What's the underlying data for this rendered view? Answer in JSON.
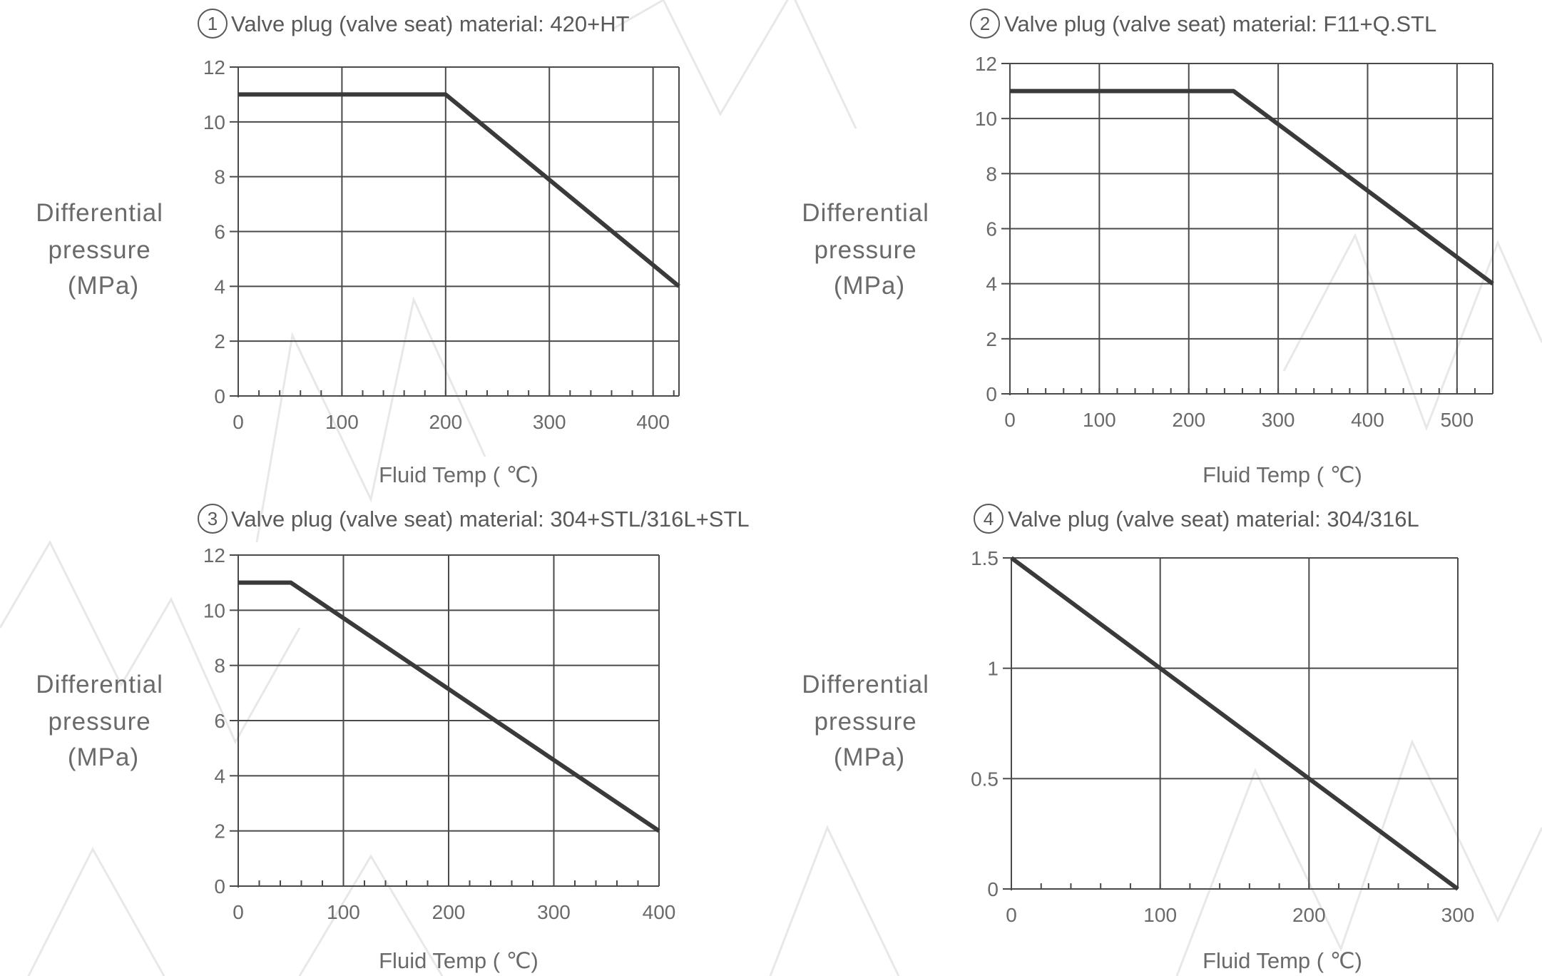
{
  "chart_data": [
    {
      "type": "line",
      "number": "1",
      "title": "Valve plug (valve seat) material: 420+HT",
      "ylabel": [
        "Differential",
        "pressure",
        "(MPa)"
      ],
      "xlabel": "Fluid Temp ( ℃)",
      "xlim": [
        0,
        425
      ],
      "ylim": [
        0,
        12
      ],
      "xticks": [
        0,
        100,
        200,
        300,
        400
      ],
      "yticks": [
        0,
        2,
        4,
        6,
        8,
        10,
        12
      ],
      "xgrid": [
        100,
        200,
        300,
        400,
        425
      ],
      "ygrid": [
        2,
        4,
        6,
        8,
        10,
        12
      ],
      "minor_xtick_step": 20,
      "grid": true,
      "x": [
        0,
        200,
        425
      ],
      "y": [
        11,
        11,
        4
      ]
    },
    {
      "type": "line",
      "number": "2",
      "title": "Valve plug (valve seat) material: F11+Q.STL",
      "ylabel": [
        "Differential",
        "pressure",
        "(MPa)"
      ],
      "xlabel": "Fluid Temp ( ℃)",
      "xlim": [
        0,
        540
      ],
      "ylim": [
        0,
        12
      ],
      "xticks": [
        0,
        100,
        200,
        300,
        400,
        500
      ],
      "yticks": [
        0,
        2,
        4,
        6,
        8,
        10,
        12
      ],
      "xgrid": [
        100,
        200,
        300,
        400,
        500,
        540
      ],
      "ygrid": [
        2,
        4,
        6,
        8,
        10,
        12
      ],
      "minor_xtick_step": 20,
      "grid": true,
      "x": [
        0,
        250,
        540
      ],
      "y": [
        11,
        11,
        4
      ]
    },
    {
      "type": "line",
      "number": "3",
      "title": "Valve plug (valve seat) material: 304+STL/316L+STL",
      "ylabel": [
        "Differential",
        "pressure",
        "(MPa)"
      ],
      "xlabel": "Fluid Temp ( ℃)",
      "xlim": [
        0,
        400
      ],
      "ylim": [
        0,
        12
      ],
      "xticks": [
        0,
        100,
        200,
        300,
        400
      ],
      "yticks": [
        0,
        2,
        4,
        6,
        8,
        10,
        12
      ],
      "xgrid": [
        100,
        200,
        300,
        400
      ],
      "ygrid": [
        2,
        4,
        6,
        8,
        10,
        12
      ],
      "minor_xtick_step": 20,
      "grid": true,
      "x": [
        0,
        50,
        400
      ],
      "y": [
        11,
        11,
        2
      ]
    },
    {
      "type": "line",
      "number": "4",
      "title": "Valve plug (valve seat) material: 304/316L",
      "ylabel": [
        "Differential",
        "pressure",
        "(MPa)"
      ],
      "xlabel": "Fluid Temp ( ℃)",
      "xlim": [
        0,
        300
      ],
      "ylim": [
        0,
        1.5
      ],
      "xticks": [
        0,
        100,
        200,
        300
      ],
      "yticks": [
        0,
        0.5,
        1,
        1.5
      ],
      "xgrid": [
        100,
        200,
        300
      ],
      "ygrid": [
        0.5,
        1,
        1.5
      ],
      "minor_xtick_step": 20,
      "grid": true,
      "x": [
        0,
        300
      ],
      "y": [
        1.5,
        0
      ]
    }
  ],
  "colors": {
    "line": "#3a3a3a",
    "grid": "#4a4a4a",
    "text": "#5c5c5c",
    "watermark": "#e6e6e6"
  }
}
